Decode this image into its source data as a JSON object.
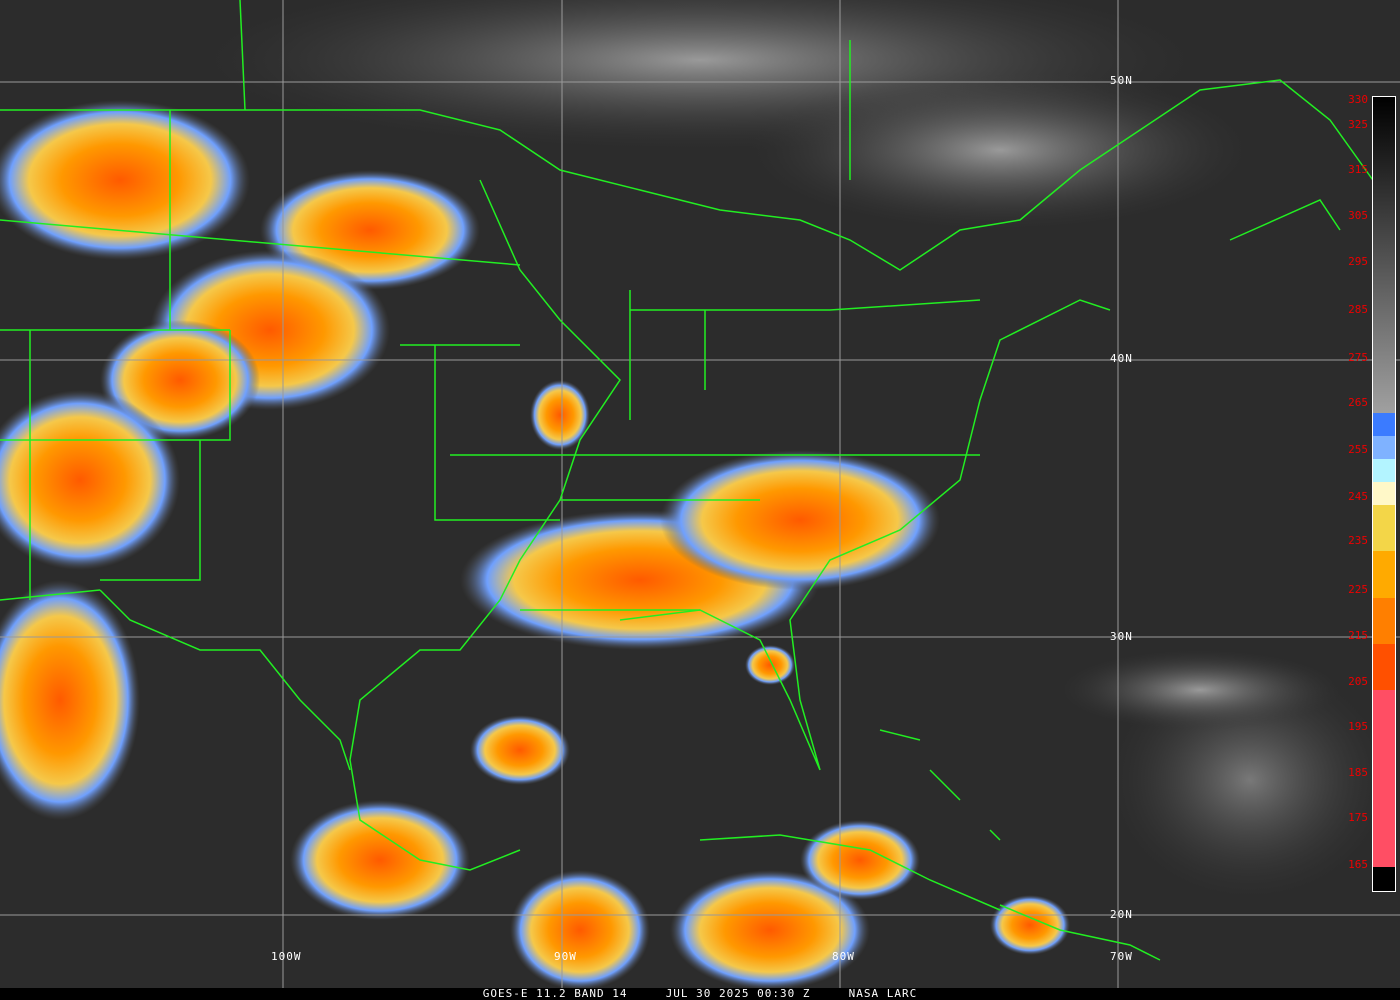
{
  "footer": {
    "satellite": "GOES-E 11.2 BAND 14",
    "datetime": "JUL 30 2025 00:30 Z",
    "source": "NASA LARC"
  },
  "grid": {
    "latitudes": [
      "50N",
      "40N",
      "30N",
      "20N"
    ],
    "longitudes": [
      "100W",
      "90W",
      "80W",
      "70W"
    ]
  },
  "colorbar": {
    "labels": [
      "330",
      "325",
      "315",
      "305",
      "295",
      "285",
      "275",
      "265",
      "255",
      "245",
      "235",
      "225",
      "215",
      "205",
      "195",
      "185",
      "175",
      "165"
    ],
    "unit_note": "",
    "segments": [
      {
        "color": "#000000",
        "stop": 0
      },
      {
        "color": "#a0a0a0",
        "stop": 0.41
      },
      {
        "color": "#3b7bff",
        "stop": 0.41
      },
      {
        "color": "#7fb2ff",
        "stop": 0.44
      },
      {
        "color": "#b3f4ff",
        "stop": 0.47
      },
      {
        "color": "#fff8c8",
        "stop": 0.5
      },
      {
        "color": "#f3d648",
        "stop": 0.53
      },
      {
        "color": "#ffaa00",
        "stop": 0.59
      },
      {
        "color": "#ff7f00",
        "stop": 0.65
      },
      {
        "color": "#ff5000",
        "stop": 0.71
      },
      {
        "color": "#ff4e64",
        "stop": 0.77
      }
    ]
  },
  "colors": {
    "borders": "#22ee22",
    "grid": "#9a9a9a",
    "labels": "#ee0000"
  }
}
